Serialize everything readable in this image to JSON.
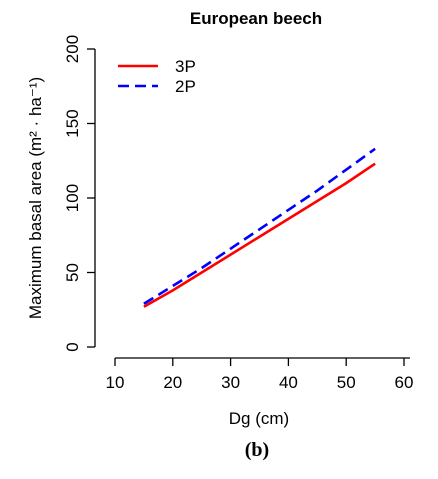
{
  "chart_data": {
    "type": "line",
    "title": "European beech",
    "xlabel": "Dg (cm)",
    "ylabel": "Maximum basal area (m² · ha⁻¹)",
    "xlim": [
      10,
      60
    ],
    "ylim": [
      0,
      200
    ],
    "x_ticks": [
      "10",
      "20",
      "30",
      "40",
      "50",
      "60"
    ],
    "y_ticks": [
      "0",
      "50",
      "100",
      "150",
      "200"
    ],
    "legend_position": "top-left",
    "grid": false,
    "series": [
      {
        "name": "3P",
        "color": "#ff0000",
        "dash": "solid",
        "x": [
          15,
          20,
          25,
          30,
          35,
          40,
          45,
          50,
          55
        ],
        "y": [
          27,
          38,
          50,
          62,
          74,
          86,
          98,
          110,
          123
        ]
      },
      {
        "name": "2P",
        "color": "#0000ff",
        "dash": "dashed",
        "x": [
          15,
          20,
          25,
          30,
          35,
          40,
          45,
          50,
          55
        ],
        "y": [
          29,
          41,
          53,
          66,
          79,
          92,
          105,
          119,
          133
        ]
      }
    ]
  },
  "panel_label": "(b)"
}
